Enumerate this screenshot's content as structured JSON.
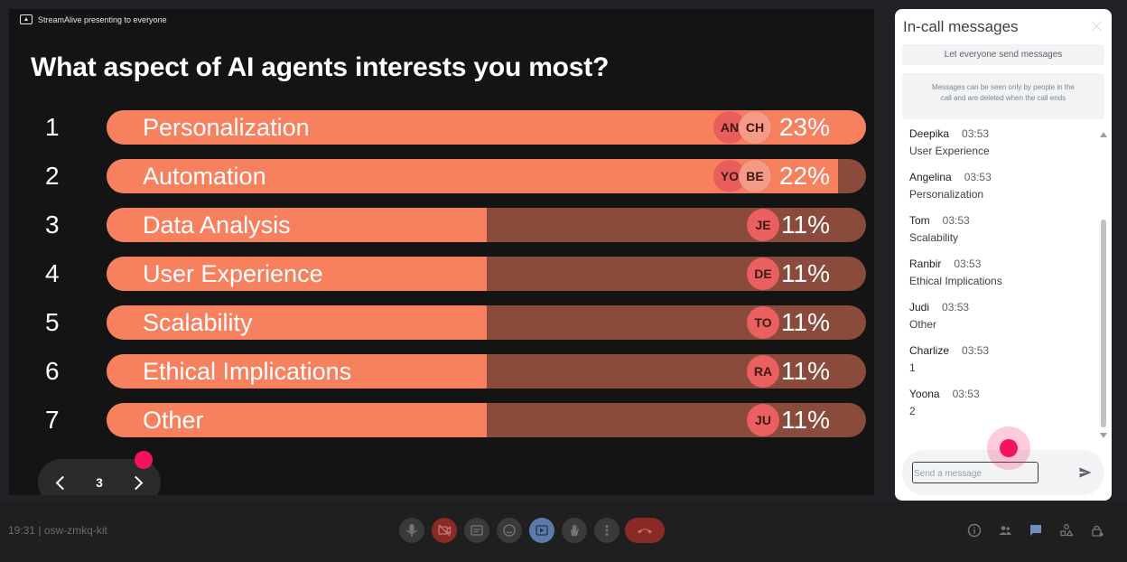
{
  "presenting_label": "StreamAlive presenting to everyone",
  "question": "What aspect of AI agents interests you most?",
  "poll": [
    {
      "rank": "1",
      "label": "Personalization",
      "percent": "23%",
      "fill": 1.0,
      "avatars": [
        "AN",
        "CH"
      ]
    },
    {
      "rank": "2",
      "label": "Automation",
      "percent": "22%",
      "fill": 0.963,
      "avatars": [
        "YO",
        "BE"
      ]
    },
    {
      "rank": "3",
      "label": "Data Analysis",
      "percent": "11%",
      "fill": 0.5,
      "avatars": [
        "JE"
      ]
    },
    {
      "rank": "4",
      "label": "User Experience",
      "percent": "11%",
      "fill": 0.5,
      "avatars": [
        "DE"
      ]
    },
    {
      "rank": "5",
      "label": "Scalability",
      "percent": "11%",
      "fill": 0.5,
      "avatars": [
        "TO"
      ]
    },
    {
      "rank": "6",
      "label": "Ethical Implications",
      "percent": "11%",
      "fill": 0.5,
      "avatars": [
        "RA"
      ]
    },
    {
      "rank": "7",
      "label": "Other",
      "percent": "11%",
      "fill": 0.5,
      "avatars": [
        "JU"
      ]
    }
  ],
  "pager": {
    "page": "3"
  },
  "chat": {
    "title": "In-call messages",
    "let_everyone": "Let everyone send messages",
    "notice": "Messages can be seen only by people in the call and are deleted when the call ends",
    "messages": [
      {
        "sender": "Deepika",
        "time": "03:53",
        "text": "User Experience"
      },
      {
        "sender": "Angelina",
        "time": "03:53",
        "text": "Personalization"
      },
      {
        "sender": "Tom",
        "time": "03:53",
        "text": "Scalability"
      },
      {
        "sender": "Ranbir",
        "time": "03:53",
        "text": "Ethical Implications"
      },
      {
        "sender": "Judi",
        "time": "03:53",
        "text": "Other"
      },
      {
        "sender": "Charlize",
        "time": "03:53",
        "text": "1"
      },
      {
        "sender": "Yoona",
        "time": "03:53",
        "text": "2"
      }
    ],
    "input_placeholder": "Send a message",
    "input_value": ""
  },
  "bottom_bar": {
    "meeting_info": "19:31  |  osw-zmkq-kit",
    "controls": [
      "microphone-icon",
      "camera-off-icon",
      "captions-icon",
      "emoji-icon",
      "present-icon",
      "raise-hand-icon",
      "more-options-icon",
      "hang-up-icon"
    ],
    "right_controls": [
      "info-icon",
      "people-icon",
      "chat-icon",
      "activities-icon",
      "host-controls-icon"
    ]
  },
  "colors": {
    "bar_fill": "#f7805f",
    "bar_track": "#8a4b3c",
    "accent_pink": "#f5125f"
  }
}
